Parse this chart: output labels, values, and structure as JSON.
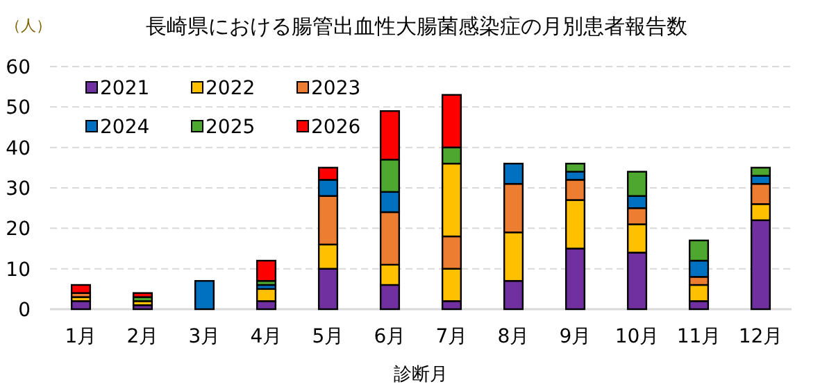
{
  "chart_data": {
    "type": "bar",
    "title": "長崎県における腸管出血性大腸菌感染症の月別患者報告数",
    "xlabel": "診断月",
    "ylabel": "（人）",
    "categories": [
      "1月",
      "2月",
      "3月",
      "4月",
      "5月",
      "6月",
      "7月",
      "8月",
      "9月",
      "10月",
      "11月",
      "12月"
    ],
    "stacked": true,
    "ylim": [
      0,
      60
    ],
    "yticks": [
      0,
      10,
      20,
      30,
      40,
      50,
      60
    ],
    "grid": "y",
    "legend": "top left",
    "series": [
      {
        "name": "2021",
        "color": "#7030a0",
        "values": [
          2,
          1,
          0,
          2,
          10,
          6,
          2,
          7,
          15,
          14,
          2,
          22
        ]
      },
      {
        "name": "2022",
        "color": "#ffc000",
        "values": [
          1,
          1,
          0,
          3,
          6,
          5,
          8,
          12,
          12,
          7,
          4,
          4
        ]
      },
      {
        "name": "2023",
        "color": "#ed7d31",
        "values": [
          1,
          0,
          0,
          0,
          12,
          13,
          8,
          12,
          5,
          4,
          2,
          5
        ]
      },
      {
        "name": "2024",
        "color": "#0070c0",
        "colors": [
          "#0070c0",
          "#0070c0",
          "#0070c0",
          "#0070c0",
          "#0070c0",
          "#0070c0",
          "#ffc000",
          "#0070c0",
          "#0070c0",
          "#0070c0",
          "#0070c0",
          "#0070c0"
        ],
        "values": [
          0,
          0,
          7,
          1,
          4,
          5,
          18,
          5,
          2,
          3,
          4,
          2
        ]
      },
      {
        "name": "2025",
        "color": "#4ea72e",
        "values": [
          0,
          1,
          0,
          1,
          0,
          8,
          4,
          0,
          2,
          6,
          5,
          2
        ]
      },
      {
        "name": "2026",
        "color": "#ff0000",
        "values": [
          2,
          1,
          0,
          5,
          3,
          12,
          13,
          0,
          0,
          0,
          0,
          0
        ]
      }
    ]
  }
}
